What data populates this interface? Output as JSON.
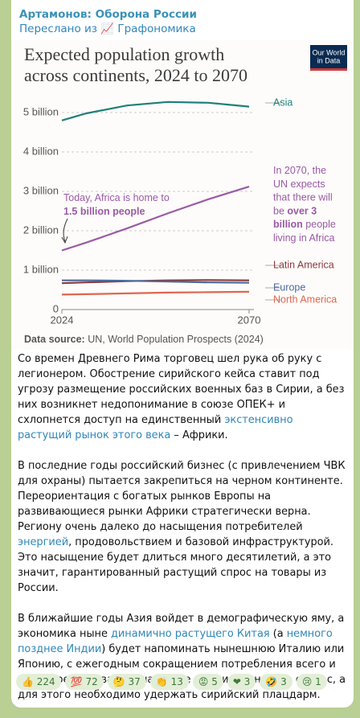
{
  "header": {
    "channel": "Артамонов: Оборона России",
    "forwarded": "Переслано из 📈 Графономика"
  },
  "chart_data": {
    "type": "line",
    "title": [
      "Expected population growth",
      "across continents, 2024 to 2070"
    ],
    "logo": [
      "Our World",
      "in Data"
    ],
    "x": [
      2024,
      2030,
      2040,
      2050,
      2060,
      2070
    ],
    "xlim": [
      2024,
      2070
    ],
    "xticks": [
      2024,
      2070
    ],
    "ylim": [
      0,
      5.5
    ],
    "yticks": [
      0,
      {
        "value": 1,
        "label": "1 billion"
      },
      {
        "value": 2,
        "label": "2 billion"
      },
      {
        "value": 3,
        "label": "3 billion"
      },
      {
        "value": 4,
        "label": "4 billion"
      },
      {
        "value": 5,
        "label": "5 billion"
      }
    ],
    "grid": true,
    "series": [
      {
        "name": "Asia",
        "color": "#1f7f79",
        "values": [
          4.8,
          4.98,
          5.18,
          5.27,
          5.25,
          5.15
        ]
      },
      {
        "name": "Africa",
        "color": "#9a5aa6",
        "values": [
          1.5,
          1.7,
          2.06,
          2.44,
          2.8,
          3.12
        ]
      },
      {
        "name": "Latin America",
        "color": "#8a3a3f",
        "values": [
          0.67,
          0.69,
          0.72,
          0.74,
          0.75,
          0.74
        ]
      },
      {
        "name": "Europe",
        "color": "#4c6a9c",
        "values": [
          0.74,
          0.74,
          0.73,
          0.71,
          0.69,
          0.68
        ]
      },
      {
        "name": "North America",
        "color": "#e0664f",
        "values": [
          0.38,
          0.39,
          0.41,
          0.43,
          0.44,
          0.45
        ]
      }
    ],
    "annotations": [
      {
        "lines": [
          [
            {
              "text": "Today, Africa is home to"
            }
          ],
          [
            {
              "text": "1.5 billion people",
              "bold": true
            }
          ]
        ]
      },
      {
        "lines": [
          [
            {
              "text": "In 2070, the"
            }
          ],
          [
            {
              "text": "UN expects"
            }
          ],
          [
            {
              "text": "that there will"
            }
          ],
          [
            {
              "text": "be "
            },
            {
              "text": "over 3",
              "bold": true
            }
          ],
          [
            {
              "text": "billion",
              "bold": true
            },
            {
              "text": " people"
            }
          ],
          [
            {
              "text": "living in Africa"
            }
          ]
        ]
      }
    ],
    "source": [
      {
        "text": "Data source:",
        "bold": true
      },
      {
        "text": " UN, World Population Prospects (2024)"
      }
    ]
  },
  "message": {
    "paragraphs": [
      [
        {
          "text": "Со времен Древнего Рима торговец шел рука об руку с легионером. Обострение сирийского кейса ставит под угрозу размещение российских военных баз в Сирии, а без них возникнет недопонимание в союзе ОПЕК+ и схлопнется доступ на единственный "
        },
        {
          "text": "экстенсивно растущий рынок этого века",
          "link": true
        },
        {
          "text": " – Африки."
        }
      ],
      [
        {
          "text": "В последние годы российский бизнес (с привлечением ЧВК для охраны) пытается закрепиться на черном континенте. Переориентация с богатых рынков Европы на развивающиеся рынки Африки стратегически верна. Региону очень далеко до насыщения потребителей "
        },
        {
          "text": "энергией",
          "link": true
        },
        {
          "text": ", продовольствием и базовой инфраструктурой. Это насыщение будет длиться много десятилетий, а это значит, гарантированный растущий спрос на товары из России."
        }
      ],
      [
        {
          "text": "В ближайшие годы Азия войдет в демографическую яму, а экономика ныне "
        },
        {
          "text": "динамично растущего Китая",
          "link": true
        },
        {
          "text": " (а "
        },
        {
          "text": "немного позднее Индии",
          "link": true
        },
        {
          "text": ") будет напоминать нынешнюю Италию или Японию, с ежегодным сокращением потребления всего и вся. Перестраиваться на новые рынки нужно уже сейчас, а для этого необходимо удержать сирийский плацдарм."
        }
      ]
    ]
  },
  "reactions": [
    {
      "emoji": "👍",
      "count": 224
    },
    {
      "emoji": "💯",
      "count": 72
    },
    {
      "emoji": "🤔",
      "count": 37
    },
    {
      "emoji": "👏",
      "count": 13
    },
    {
      "emoji": "😡",
      "count": 5
    },
    {
      "emoji": "❤",
      "count": 3
    },
    {
      "emoji": "🤣",
      "count": 3
    },
    {
      "emoji": "😢",
      "count": 1
    }
  ]
}
